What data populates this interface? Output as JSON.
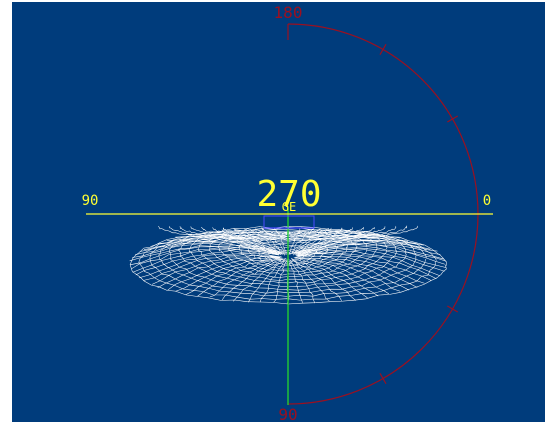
{
  "viewer": {
    "background_color": "#003c7c",
    "angle_readout": "270",
    "sub_readout": "GE",
    "top_label": "180",
    "bottom_label": "90",
    "left_label": "90",
    "right_label": "0",
    "horizon_color": "#ffff33",
    "arc_color": "#9b1020",
    "axis_color": "#22cc33",
    "mesh_color": "#ffffff",
    "marker_color": "#4a4aff"
  }
}
